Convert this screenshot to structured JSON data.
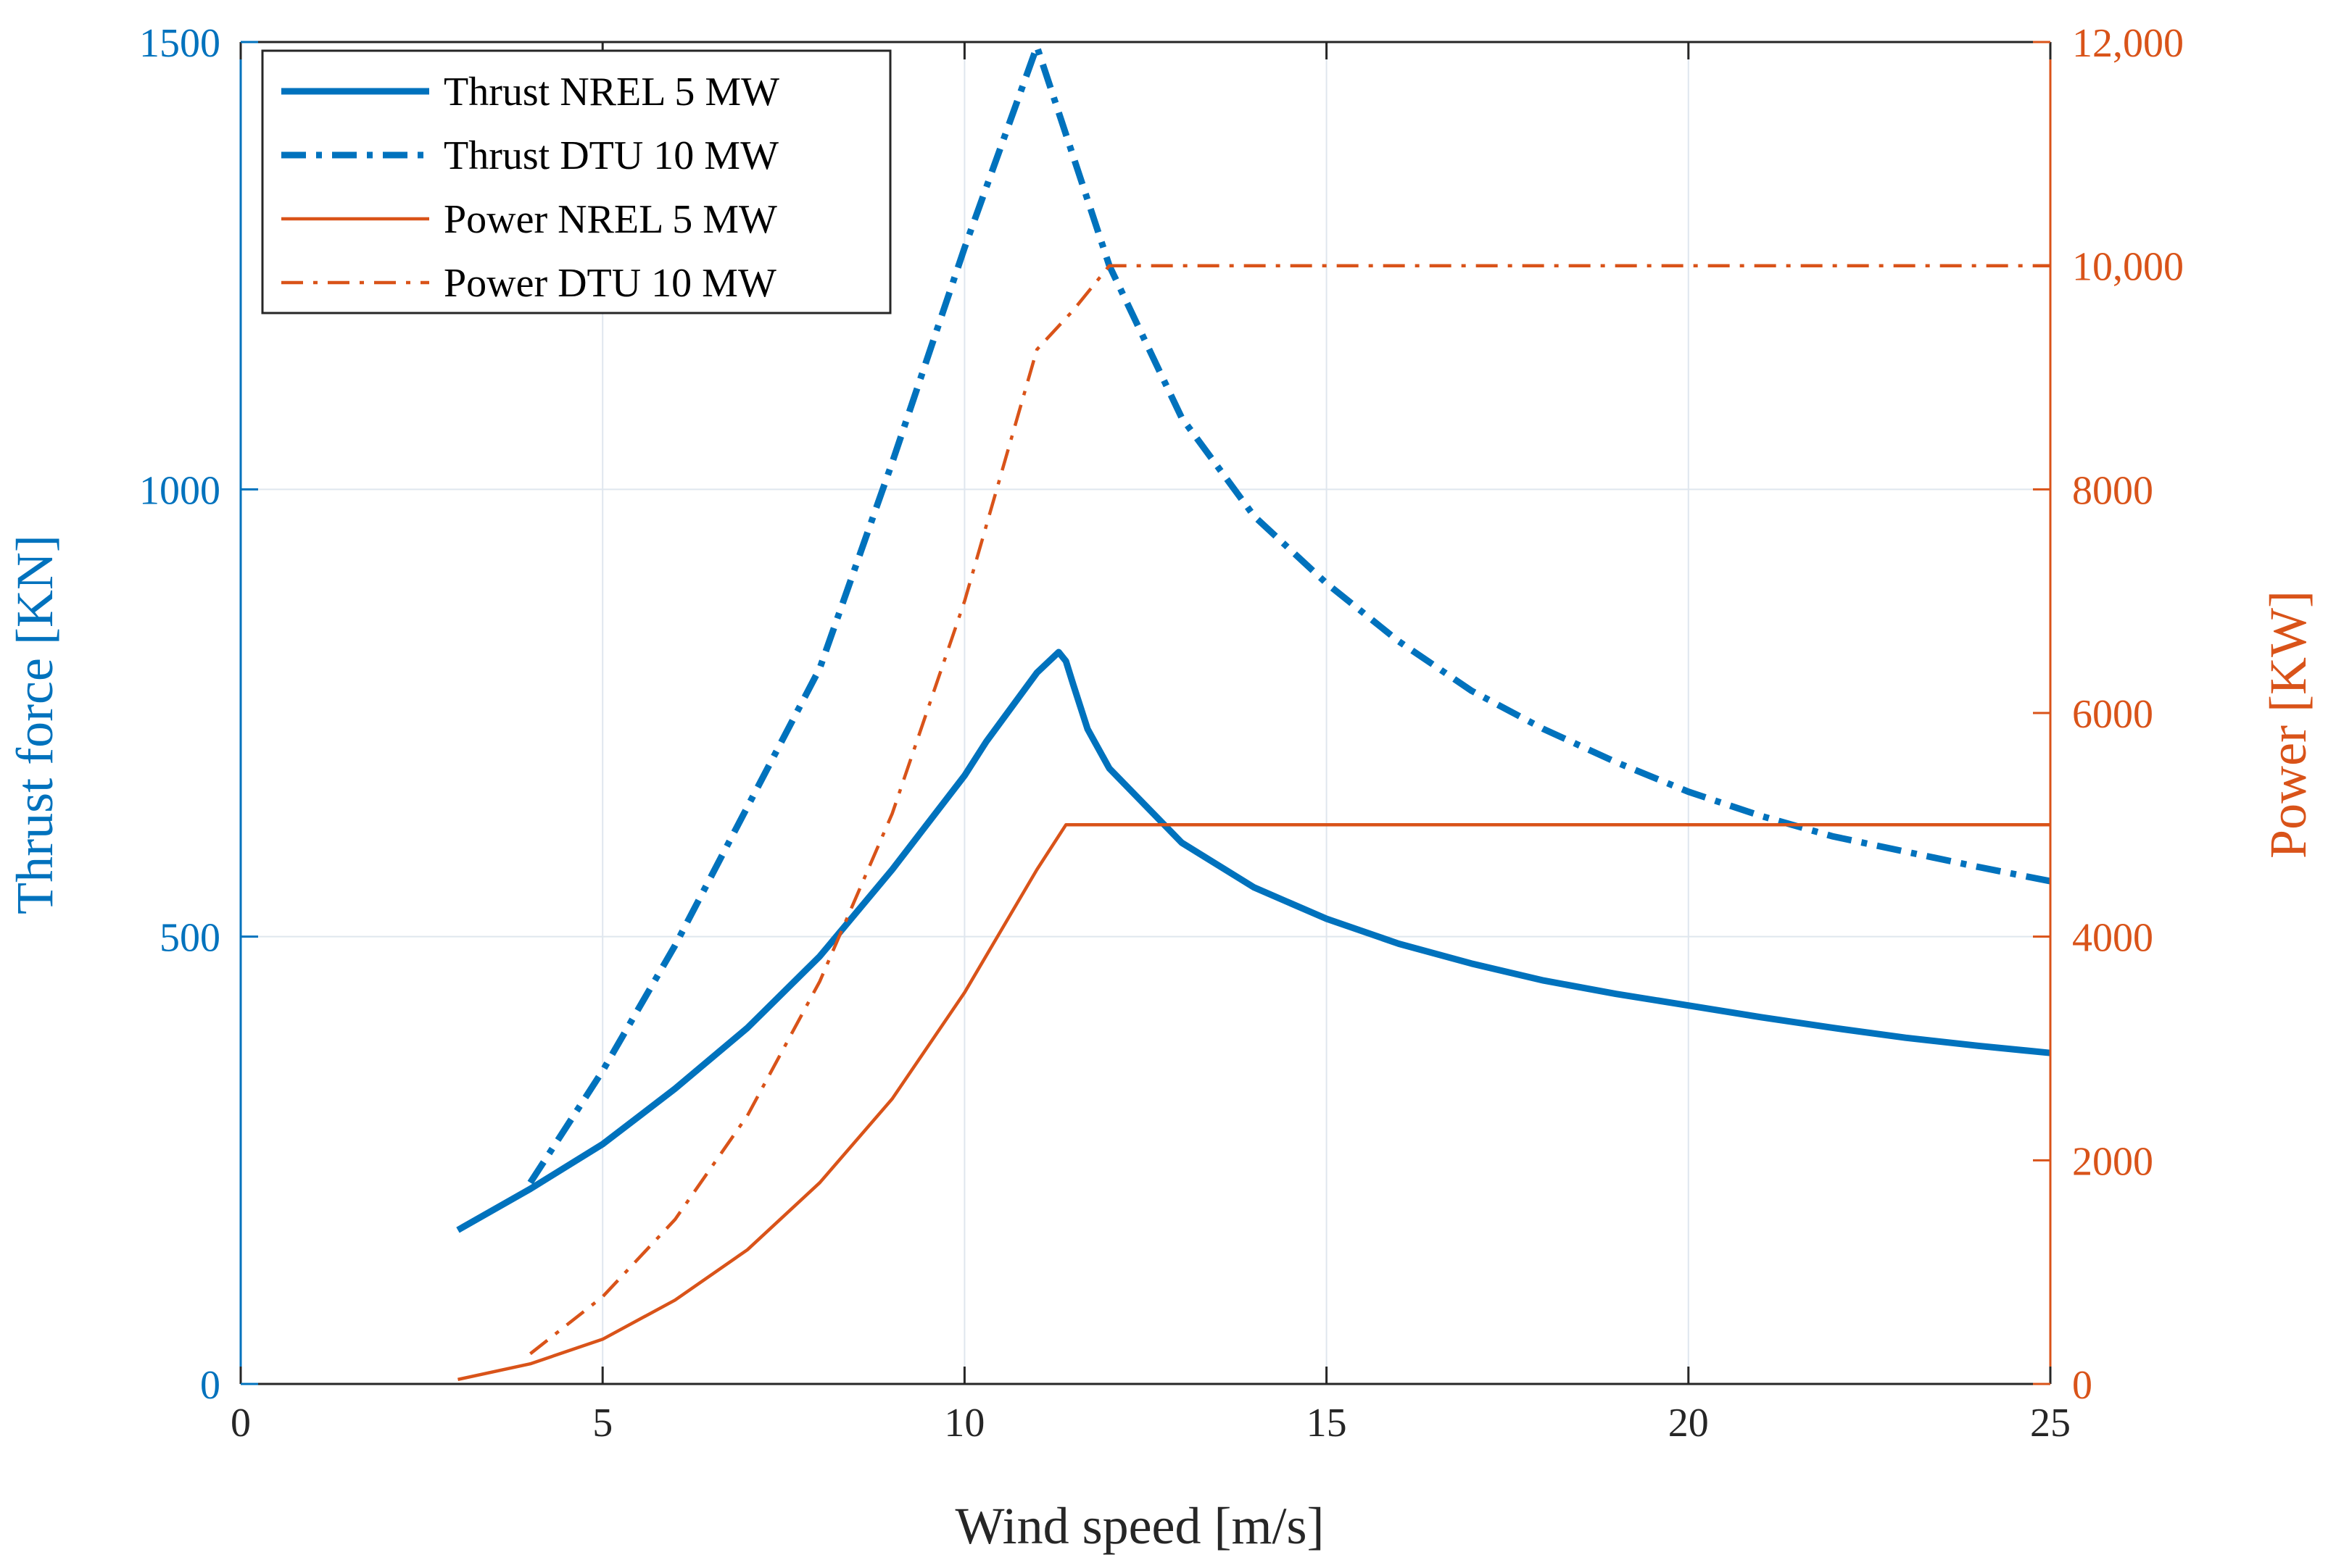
{
  "chart_data": {
    "type": "line",
    "xlabel": "Wind speed [m/s]",
    "ylabel_left": "Thrust force [KN]",
    "ylabel_right": "Power [KW]",
    "xlim": [
      0,
      25
    ],
    "ylim_left": [
      0,
      1500
    ],
    "ylim_right": [
      0,
      12000
    ],
    "x_ticks": [
      0,
      5,
      10,
      15,
      20,
      25
    ],
    "x_tick_labels": [
      "0",
      "5",
      "10",
      "15",
      "20",
      "25"
    ],
    "y_left_ticks": [
      0,
      500,
      1000,
      1500
    ],
    "y_left_tick_labels": [
      "0",
      "500",
      "1000",
      "1500"
    ],
    "y_right_ticks": [
      0,
      2000,
      4000,
      6000,
      8000,
      10000,
      12000
    ],
    "y_right_tick_labels": [
      "0",
      "2000",
      "4000",
      "6000",
      "8000",
      "10,000",
      "12,000"
    ],
    "grid": true,
    "legend_position": "top-left",
    "colors": {
      "thrust": "#0072BD",
      "power": "#D95319",
      "grid": "#dfe6ee"
    },
    "series": [
      {
        "name": "Thrust NREL 5 MW",
        "axis": "left",
        "style": "solid",
        "weight": "thick",
        "x": [
          3,
          4,
          5,
          6,
          7,
          8,
          9,
          10,
          10.3,
          11,
          11.3,
          11.4,
          11.5,
          11.7,
          12,
          13,
          14,
          15,
          16,
          17,
          18,
          19,
          20,
          21,
          22,
          23,
          24,
          25
        ],
        "y": [
          172,
          218,
          268,
          330,
          398,
          478,
          575,
          680,
          718,
          795,
          818,
          808,
          782,
          732,
          688,
          605,
          555,
          520,
          492,
          470,
          451,
          436,
          423,
          410,
          398,
          387,
          378,
          370
        ]
      },
      {
        "name": "Thrust DTU 10 MW",
        "axis": "left",
        "style": "dashdot",
        "weight": "thick",
        "x": [
          4,
          5,
          6,
          7,
          8,
          9,
          10,
          11,
          12,
          13,
          14,
          15,
          16,
          17,
          18,
          19,
          20,
          21,
          22,
          23,
          24,
          25
        ],
        "y": [
          225,
          350,
          490,
          645,
          800,
          1030,
          1270,
          1495,
          1250,
          1080,
          970,
          895,
          830,
          775,
          732,
          695,
          662,
          635,
          612,
          595,
          578,
          562
        ]
      },
      {
        "name": "Power NREL 5 MW",
        "axis": "right",
        "style": "solid",
        "weight": "thin",
        "x": [
          3,
          4,
          5,
          6,
          7,
          8,
          9,
          10,
          11,
          11.4,
          12,
          13,
          14,
          15,
          16,
          17,
          18,
          19,
          20,
          21,
          22,
          23,
          24,
          25
        ],
        "y": [
          40,
          180,
          400,
          750,
          1200,
          1800,
          2550,
          3500,
          4600,
          5000,
          5000,
          5000,
          5000,
          5000,
          5000,
          5000,
          5000,
          5000,
          5000,
          5000,
          5000,
          5000,
          5000,
          5000
        ]
      },
      {
        "name": "Power DTU 10 MW",
        "axis": "right",
        "style": "dashdot",
        "weight": "thin",
        "x": [
          4,
          5,
          6,
          7,
          8,
          9,
          10,
          11,
          11.5,
          12,
          13,
          14,
          15,
          16,
          17,
          18,
          19,
          20,
          21,
          22,
          23,
          24,
          25
        ],
        "y": [
          270,
          780,
          1470,
          2400,
          3600,
          5100,
          7000,
          9250,
          9600,
          10000,
          10000,
          10000,
          10000,
          10000,
          10000,
          10000,
          10000,
          10000,
          10000,
          10000,
          10000,
          10000,
          10000
        ]
      }
    ]
  }
}
